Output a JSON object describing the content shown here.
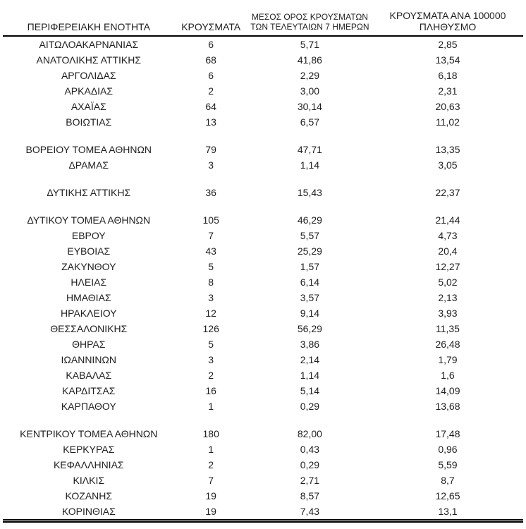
{
  "table": {
    "header": {
      "region": "ΠΕΡΙΦΕΡΕΙΑΚΗ ΕΝΟΤΗΤΑ",
      "cases": "ΚΡΟΥΣΜΑΤΑ",
      "avg7_line1": "ΜΕΣΟΣ ΟΡΟΣ ΚΡΟΥΣΜΑΤΩΝ",
      "avg7_line2": "ΤΩΝ ΤΕΛΕΥΤΑΙΩΝ 7 ΗΜΕΡΩΝ",
      "per100k_line1": "ΚΡΟΥΣΜΑΤΑ ΑΝΑ 100000",
      "per100k_line2": "ΠΛΗΘΥΣΜΟ"
    },
    "rows": [
      [
        "ΑΙΤΩΛΟΑΚΑΡΝΑΝΙΑΣ",
        "6",
        "5,71",
        "2,85"
      ],
      [
        "ΑΝΑΤΟΛΙΚΗΣ ΑΤΤΙΚΗΣ",
        "68",
        "41,86",
        "13,54"
      ],
      [
        "ΑΡΓΟΛΙΔΑΣ",
        "6",
        "2,29",
        "6,18"
      ],
      [
        "ΑΡΚΑΔΙΑΣ",
        "2",
        "3,00",
        "2,31"
      ],
      [
        "ΑΧΑΪΑΣ",
        "64",
        "30,14",
        "20,63"
      ],
      [
        "ΒΟΙΩΤΙΑΣ",
        "13",
        "6,57",
        "11,02"
      ],
      null,
      [
        "ΒΟΡΕΙΟΥ ΤΟΜΕΑ ΑΘΗΝΩΝ",
        "79",
        "47,71",
        "13,35"
      ],
      [
        "ΔΡΑΜΑΣ",
        "3",
        "1,14",
        "3,05"
      ],
      null,
      [
        "ΔΥΤΙΚΗΣ ΑΤΤΙΚΗΣ",
        "36",
        "15,43",
        "22,37"
      ],
      null,
      [
        "ΔΥΤΙΚΟΥ ΤΟΜΕΑ ΑΘΗΝΩΝ",
        "105",
        "46,29",
        "21,44"
      ],
      [
        "ΕΒΡΟΥ",
        "7",
        "5,57",
        "4,73"
      ],
      [
        "ΕΥΒΟΙΑΣ",
        "43",
        "25,29",
        "20,4"
      ],
      [
        "ΖΑΚΥΝΘΟΥ",
        "5",
        "1,57",
        "12,27"
      ],
      [
        "ΗΛΕΙΑΣ",
        "8",
        "6,14",
        "5,02"
      ],
      [
        "ΗΜΑΘΙΑΣ",
        "3",
        "3,57",
        "2,13"
      ],
      [
        "ΗΡΑΚΛΕΙΟΥ",
        "12",
        "9,14",
        "3,93"
      ],
      [
        "ΘΕΣΣΑΛΟΝΙΚΗΣ",
        "126",
        "56,29",
        "11,35"
      ],
      [
        "ΘΗΡΑΣ",
        "5",
        "3,86",
        "26,48"
      ],
      [
        "ΙΩΑΝΝΙΝΩΝ",
        "3",
        "2,14",
        "1,79"
      ],
      [
        "ΚΑΒΑΛΑΣ",
        "2",
        "1,14",
        "1,6"
      ],
      [
        "ΚΑΡΔΙΤΣΑΣ",
        "16",
        "5,14",
        "14,09"
      ],
      [
        "ΚΑΡΠΑΘΟΥ",
        "1",
        "0,29",
        "13,68"
      ],
      null,
      [
        "ΚΕΝΤΡΙΚΟΥ ΤΟΜΕΑ ΑΘΗΝΩΝ",
        "180",
        "82,00",
        "17,48"
      ],
      [
        "ΚΕΡΚΥΡΑΣ",
        "1",
        "0,43",
        "0,96"
      ],
      [
        "ΚΕΦΑΛΛΗΝΙΑΣ",
        "2",
        "0,29",
        "5,59"
      ],
      [
        "ΚΙΛΚΙΣ",
        "7",
        "2,71",
        "8,7"
      ],
      [
        "ΚΟΖΑΝΗΣ",
        "19",
        "8,57",
        "12,65"
      ],
      [
        "ΚΟΡΙΝΘΙΑΣ",
        "19",
        "7,43",
        "13,1"
      ]
    ],
    "text_color": "#1f1f1f",
    "rule_color": "#000000"
  }
}
